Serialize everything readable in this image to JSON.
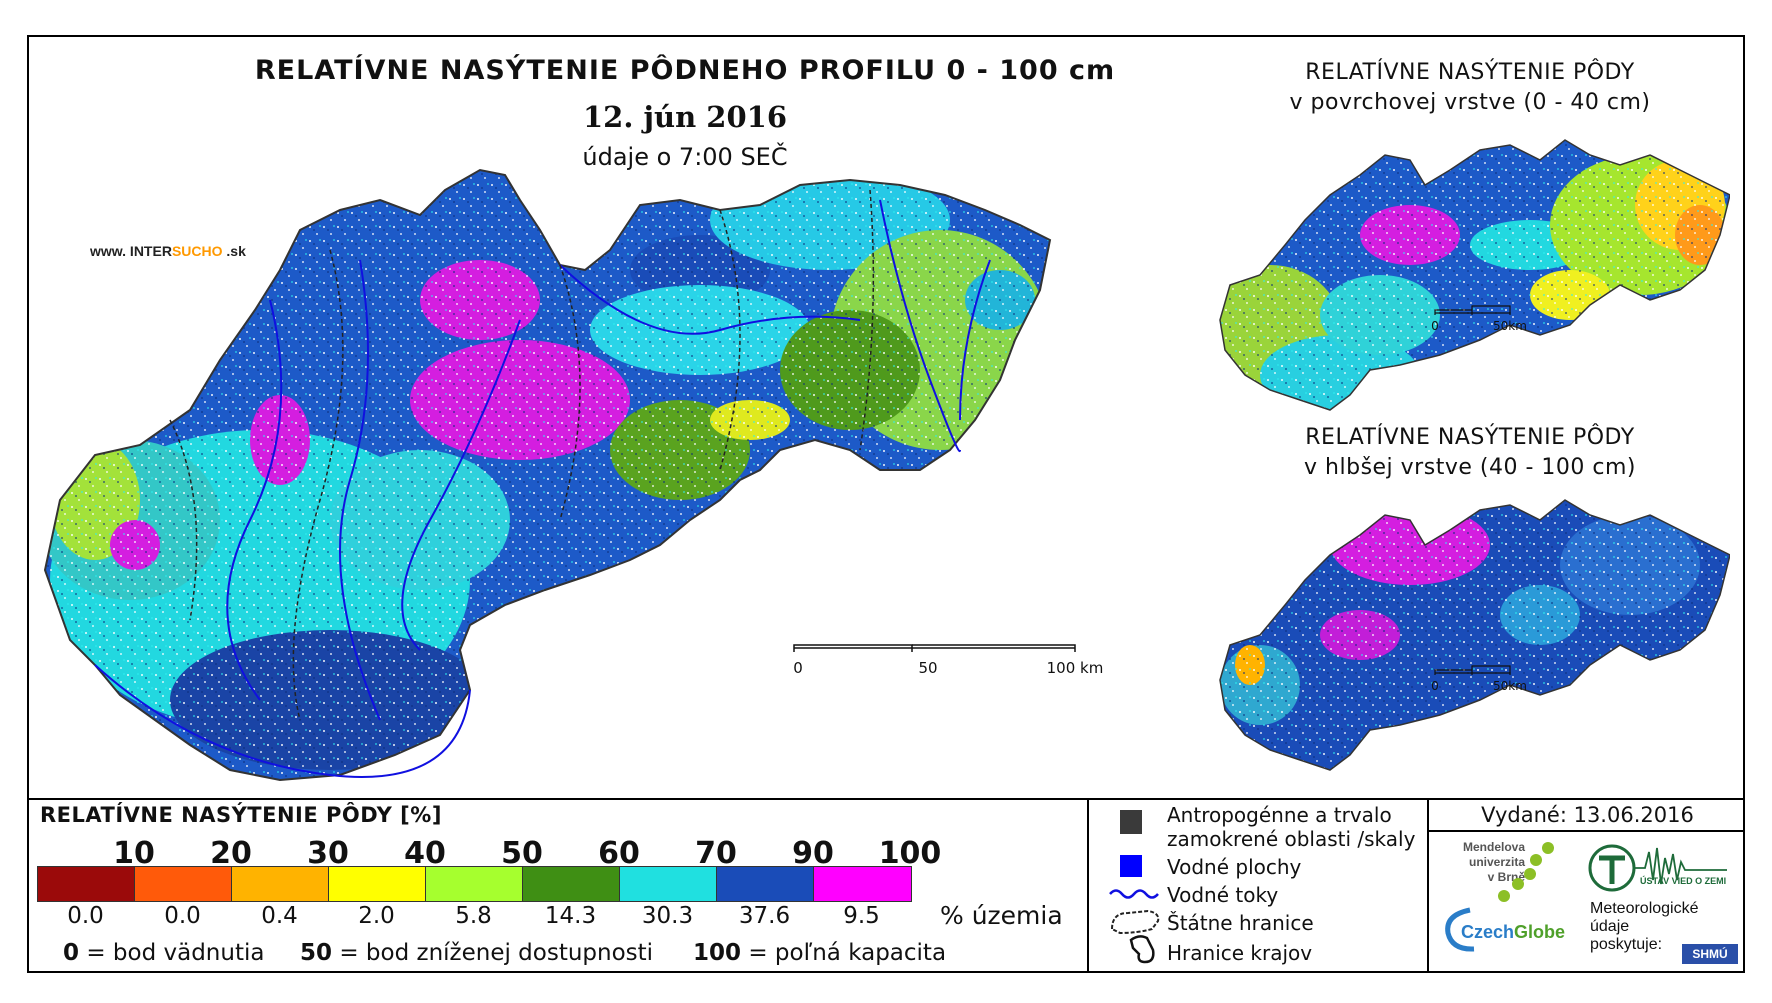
{
  "title": {
    "main": "RELATÍVNE NASÝTENIE PÔDNEHO PROFILU 0 - 100 cm",
    "date": "12. jún 2016",
    "time": "údaje o 7:00 SEČ"
  },
  "brand": {
    "prefix": "www. INTER",
    "accent": "SUCHO",
    "suffix": " .sk"
  },
  "side_maps": [
    {
      "title_line1": "RELATÍVNE NASÝTENIE PÔDY",
      "title_line2": "v povrchovej vrstve (0 - 40 cm)",
      "scale_zero": "0",
      "scale_end": "50km"
    },
    {
      "title_line1": "RELATÍVNE NASÝTENIE PÔDY",
      "title_line2": "v hlbšej vrstve (40 - 100 cm)",
      "scale_zero": "0",
      "scale_end": "50km"
    }
  ],
  "main_scale": {
    "zero": "0",
    "mid": "50",
    "end": "100 km"
  },
  "legend": {
    "title": "RELATÍVNE NASÝTENIE PÔDY [%]",
    "ticks": [
      "10",
      "20",
      "30",
      "40",
      "50",
      "60",
      "70",
      "90",
      "100"
    ],
    "colors": [
      "#9b0a0a",
      "#ff5a0a",
      "#ffb300",
      "#ffff00",
      "#a6ff2e",
      "#3f8f14",
      "#20e0e0",
      "#1a4cb8",
      "#ff00ff"
    ],
    "percentages": [
      "0.0",
      "0.0",
      "0.4",
      "2.0",
      "5.8",
      "14.3",
      "30.3",
      "37.6",
      "9.5"
    ],
    "pct_unit": "% územia",
    "notes": [
      {
        "value": "0",
        "label": "= bod vädnutia"
      },
      {
        "value": "50",
        "label": "= bod zníženej dostupnosti"
      },
      {
        "value": "100",
        "label": "= poľná kapacita"
      }
    ]
  },
  "symbols": {
    "anthropogenic_line1": "Antropogénne a trvalo",
    "anthropogenic_line2": "zamokrené oblasti /skaly",
    "water_bodies": "Vodné plochy",
    "rivers": "Vodné toky",
    "borders": "Štátne hranice",
    "regions": "Hranice krajov"
  },
  "issued": "Vydané: 13.06.2016",
  "logos": {
    "mendel": [
      "Mendelova",
      "univerzita",
      "v Brně"
    ],
    "czechglobe_a": "Czech",
    "czechglobe_b": "Globe",
    "ustav": "ÚSTAV VIED O ZEMI",
    "meteo": [
      "Meteorologické",
      "údaje",
      "poskytuje:"
    ],
    "shmu": "SHMÚ"
  }
}
